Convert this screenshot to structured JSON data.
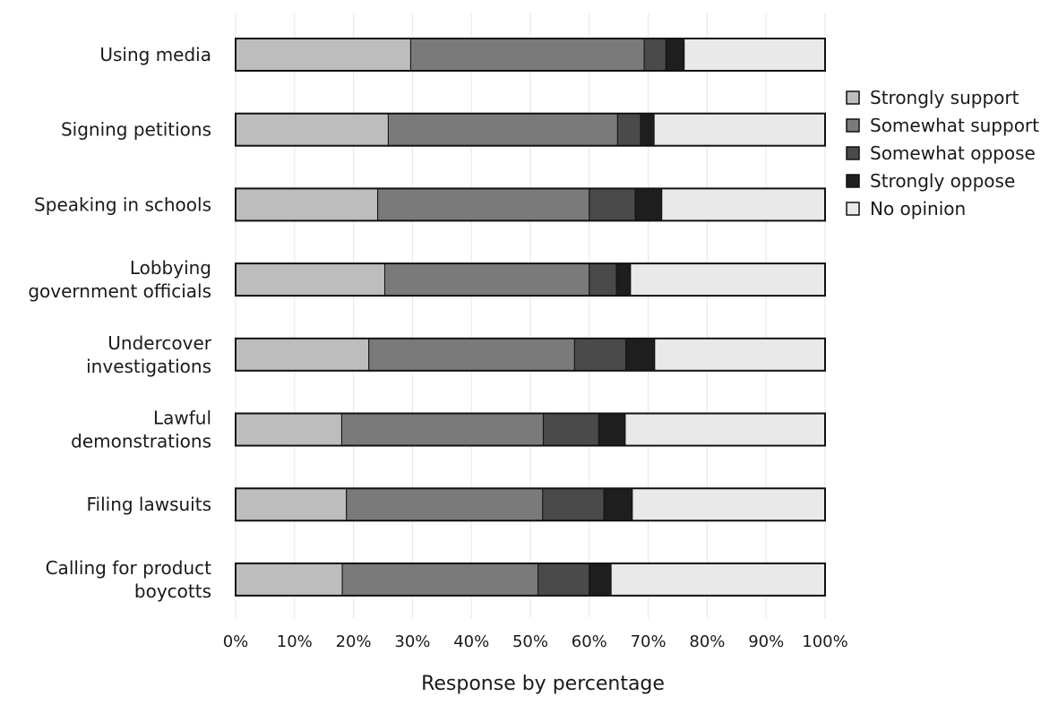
{
  "chart_data": {
    "type": "bar",
    "orientation": "horizontal",
    "stacked": true,
    "xlabel": "Response by percentage",
    "xlim": [
      0,
      100
    ],
    "x_ticks": [
      "0%",
      "10%",
      "20%",
      "30%",
      "40%",
      "50%",
      "60%",
      "70%",
      "80%",
      "90%",
      "100%"
    ],
    "grid": true,
    "legend_position": "right",
    "categories": [
      [
        "Using media"
      ],
      [
        "Signing petitions"
      ],
      [
        "Speaking in schools"
      ],
      [
        "Lobbying",
        "government officials"
      ],
      [
        "Undercover",
        "investigations"
      ],
      [
        "Lawful",
        "demonstrations"
      ],
      [
        "Filing lawsuits"
      ],
      [
        "Calling for product",
        "boycotts"
      ]
    ],
    "series": [
      {
        "name": "Strongly support",
        "color": "#bdbdbd",
        "values": [
          29.7,
          25.9,
          24.1,
          25.3,
          22.6,
          18.0,
          18.8,
          18.1
        ]
      },
      {
        "name": "Somewhat support",
        "color": "#7a7a7a",
        "values": [
          39.6,
          38.9,
          35.9,
          34.7,
          34.9,
          34.2,
          33.3,
          33.2
        ]
      },
      {
        "name": "Somewhat oppose",
        "color": "#4a4a4a",
        "values": [
          3.7,
          3.9,
          7.8,
          4.6,
          8.7,
          9.4,
          10.4,
          8.7
        ]
      },
      {
        "name": "Strongly oppose",
        "color": "#1e1e1e",
        "values": [
          3.1,
          2.3,
          4.5,
          2.4,
          4.9,
          4.5,
          4.8,
          3.7
        ]
      },
      {
        "name": "No opinion",
        "color": "#e9e9e9",
        "values": [
          23.9,
          29.0,
          27.7,
          33.0,
          28.9,
          33.9,
          32.7,
          36.3
        ]
      }
    ]
  }
}
